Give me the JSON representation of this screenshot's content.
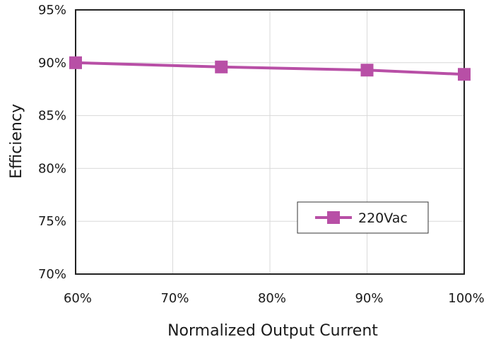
{
  "chart_data": {
    "type": "line",
    "xlabel": "Normalized Output Current",
    "ylabel": "Efficiency",
    "x_ticks": [
      "60%",
      "70%",
      "80%",
      "90%",
      "100%"
    ],
    "y_ticks": [
      "70%",
      "75%",
      "80%",
      "85%",
      "90%",
      "95%"
    ],
    "xlim": [
      60,
      100
    ],
    "ylim": [
      70,
      95
    ],
    "grid": true,
    "legend_position": "bottom-right",
    "series": [
      {
        "name": "220Vac",
        "color": "#b84fa6",
        "marker": "square",
        "x": [
          60,
          75,
          90,
          100
        ],
        "y": [
          90.0,
          89.6,
          89.3,
          88.9
        ]
      }
    ]
  }
}
